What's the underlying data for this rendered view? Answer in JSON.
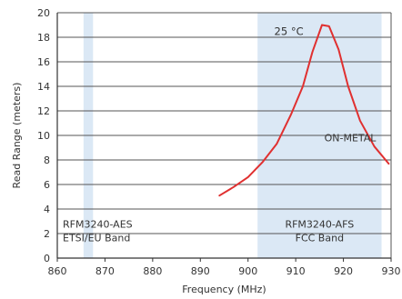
{
  "chart_data": {
    "type": "line",
    "title": "",
    "xlabel": "Frequency (MHz)",
    "ylabel": "Read Range (meters)",
    "xlim": [
      860,
      930
    ],
    "ylim": [
      0,
      20
    ],
    "x_ticks": [
      860,
      870,
      880,
      890,
      900,
      910,
      920,
      930
    ],
    "y_ticks": [
      0,
      2,
      4,
      6,
      8,
      10,
      12,
      14,
      16,
      18,
      20
    ],
    "grid": "horizontal",
    "colors": {
      "line": "#e03030",
      "band": "#dbe8f5",
      "grid": "#555555",
      "axis": "#333333"
    },
    "series": [
      {
        "x": [
          894,
          897,
          900,
          903,
          906,
          909,
          911.5,
          913.5,
          915.5,
          917,
          919,
          921,
          923.5,
          926.5,
          929.5
        ],
        "y": [
          5.1,
          5.8,
          6.6,
          7.8,
          9.3,
          11.7,
          14.0,
          16.8,
          19.0,
          18.9,
          17.0,
          14.0,
          11.2,
          9.1,
          7.7
        ]
      }
    ],
    "bands": [
      {
        "x_range": [
          865.5,
          867.5
        ],
        "label_lines": [
          "RFM3240-AES",
          "ETSI/EU Band"
        ]
      },
      {
        "x_range": [
          902,
          928
        ],
        "label_lines": [
          "RFM3240-AFS",
          "FCC Band"
        ]
      }
    ],
    "annotations": {
      "temperature": "25 °C",
      "curve": "ON-METAL"
    }
  }
}
